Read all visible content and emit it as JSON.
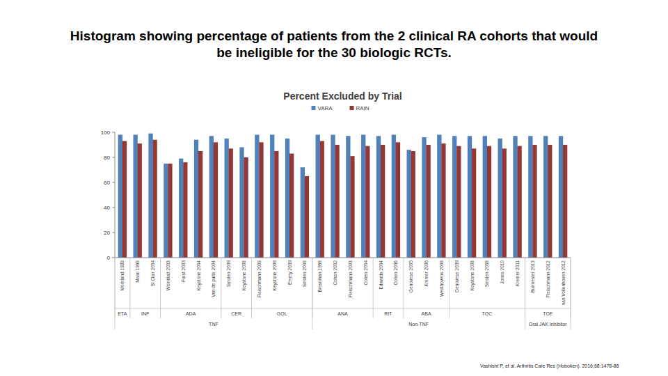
{
  "slide_title": "Histogram showing percentage of patients from the 2 clinical RA cohorts that would be ineligible for the 30 biologic RCTs.",
  "citation": "Vashisht P, et al. Arthritis Care Res (Hoboken). 2016;68:1478-88",
  "chart_data": {
    "type": "bar",
    "title": "Percent Excluded by Trial",
    "categories": [
      "Moreland 1999",
      "Maini 1999",
      "St Clair 2004",
      "Weinblatt 2003",
      "Furst 2003",
      "Keystone 2004",
      "Van de putte 2004",
      "Smolen 2008",
      "Keystone 2008",
      "Fleischmann 2009",
      "Keystone 2008",
      "Emery 2009",
      "Smolen 2009",
      "Bresnihan 1998",
      "Cohen 2002",
      "Fleischmann 2003",
      "Cohen 2004",
      "Edwards 2004",
      "Cohen 2006",
      "Genovese 2005",
      "Kremer 2006",
      "Westhovens 2009",
      "Genovese 2008",
      "Keystone 2008",
      "Smolen 2008",
      "Jones 2010",
      "Kremer 2011",
      "Burmester 2013",
      "Fleischmann 2012",
      "van Vollenhoven 2012"
    ],
    "series": [
      {
        "name": "VARA",
        "color": "#4f81bd",
        "values": [
          98,
          98,
          99,
          75,
          79,
          94,
          97,
          95,
          88,
          98,
          98,
          95,
          72,
          98,
          98,
          97,
          98,
          97,
          98,
          86,
          96,
          98,
          97,
          97,
          97,
          95,
          97,
          97,
          97,
          97
        ]
      },
      {
        "name": "RAIN",
        "color": "#953735",
        "values": [
          93,
          91,
          94,
          75,
          76,
          85,
          92,
          87,
          80,
          92,
          85,
          83,
          65,
          93,
          90,
          81,
          89,
          90,
          92,
          85,
          90,
          91,
          89,
          87,
          89,
          87,
          89,
          90,
          90,
          90
        ]
      }
    ],
    "category_groups": [
      [
        {
          "label": "ETA",
          "span": 1
        },
        {
          "label": "INF",
          "span": 2
        },
        {
          "label": "ADA",
          "span": 4
        },
        {
          "label": "CER",
          "span": 2
        },
        {
          "label": "GOL",
          "span": 4
        },
        {
          "label": "ANA",
          "span": 4
        },
        {
          "label": "RIT",
          "span": 2
        },
        {
          "label": "ABA",
          "span": 3
        },
        {
          "label": "TOC",
          "span": 5
        },
        {
          "label": "TOF",
          "span": 3
        }
      ],
      [
        {
          "label": "TNF",
          "span": 13
        },
        {
          "label": "Non-TNF",
          "span": 14
        },
        {
          "label": "Oral JAK Inhibitor",
          "span": 3
        }
      ]
    ],
    "ylim": [
      0,
      100
    ],
    "yticks": [
      0,
      20,
      40,
      60,
      80,
      100
    ],
    "grid": false,
    "legend": "top"
  }
}
